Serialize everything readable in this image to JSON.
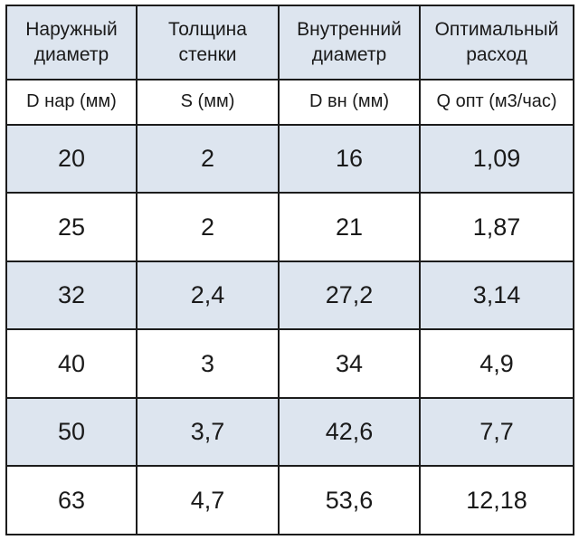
{
  "table": {
    "headers": [
      {
        "line1": "Наружный",
        "line2": "диаметр"
      },
      {
        "line1": "Толщина",
        "line2": "стенки"
      },
      {
        "line1": "Внутренний",
        "line2": "диаметр"
      },
      {
        "line1": "Оптимальный",
        "line2": "расход"
      }
    ],
    "units": [
      "D нар (мм)",
      "S (мм)",
      "D вн (мм)",
      "Q опт (м3/час)"
    ],
    "rows": [
      [
        "20",
        "2",
        "16",
        "1,09"
      ],
      [
        "25",
        "2",
        "21",
        "1,87"
      ],
      [
        "32",
        "2,4",
        "27,2",
        "3,14"
      ],
      [
        "40",
        "3",
        "34",
        "4,9"
      ],
      [
        "50",
        "3,7",
        "42,6",
        "7,7"
      ],
      [
        "63",
        "4,7",
        "53,6",
        "12,18"
      ]
    ],
    "colors": {
      "shade": "#dde5ef",
      "border": "#1c1c1c"
    }
  }
}
